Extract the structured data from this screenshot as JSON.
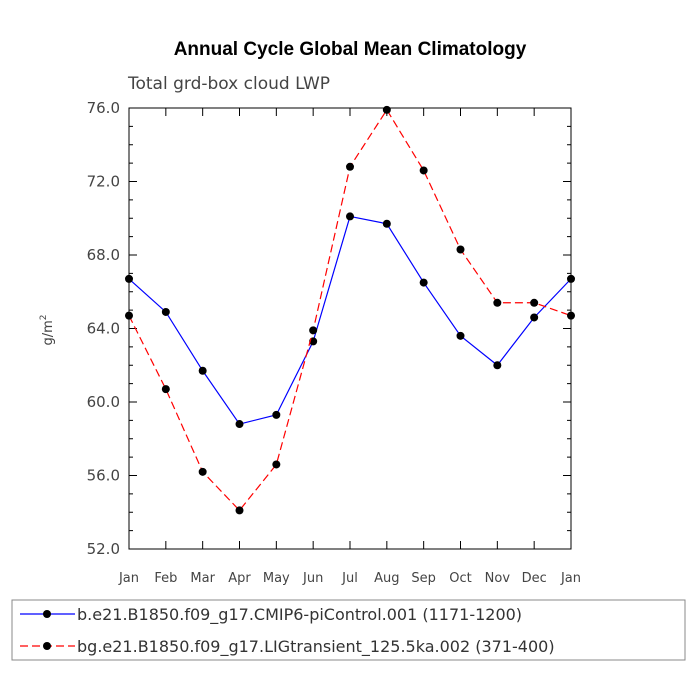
{
  "chart_data": {
    "type": "line",
    "title": "Annual Cycle Global Mean Climatology",
    "subtitle": "Total grd-box cloud LWP",
    "ylabel_base": "g/m",
    "ylabel_sup": "2",
    "categories": [
      "Jan",
      "Feb",
      "Mar",
      "Apr",
      "May",
      "Jun",
      "Jul",
      "Aug",
      "Sep",
      "Oct",
      "Nov",
      "Dec",
      "Jan"
    ],
    "ylim": [
      52.0,
      76.0
    ],
    "yticks": [
      "52.0",
      "56.0",
      "60.0",
      "64.0",
      "68.0",
      "72.0",
      "76.0"
    ],
    "ytick_values": [
      52,
      56,
      60,
      64,
      68,
      72,
      76
    ],
    "series": [
      {
        "name": "b.e21.B1850.f09_g17.CMIP6-piControl.001 (1171-1200)",
        "color": "#0000ff",
        "dash": "solid",
        "values": [
          66.7,
          64.9,
          61.7,
          58.8,
          59.3,
          63.3,
          70.1,
          69.7,
          66.5,
          63.6,
          62.0,
          64.6,
          66.7
        ]
      },
      {
        "name": "bg.e21.B1850.f09_g17.LIGtransient_125.5ka.002 (371-400)",
        "color": "#ff0000",
        "dash": "dashed",
        "values": [
          64.7,
          60.7,
          56.2,
          54.1,
          56.6,
          63.9,
          72.8,
          75.9,
          72.6,
          68.3,
          65.4,
          65.4,
          64.7
        ]
      }
    ]
  }
}
